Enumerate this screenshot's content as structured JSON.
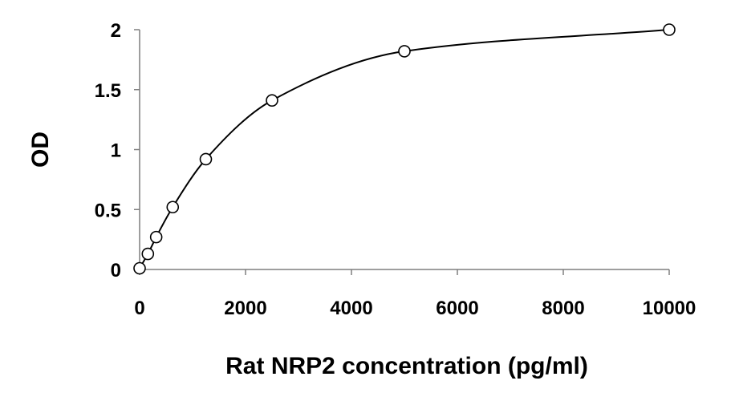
{
  "chart_data": {
    "type": "scatter",
    "title": "",
    "xlabel": "Rat NRP2 concentration (pg/ml)",
    "ylabel": "OD",
    "xlim": [
      0,
      10000
    ],
    "ylim": [
      0,
      2
    ],
    "x_ticks": [
      0,
      2000,
      4000,
      6000,
      8000,
      10000
    ],
    "x_tick_labels": [
      "0",
      "2000",
      "4000",
      "6000",
      "8000",
      "10000"
    ],
    "y_ticks": [
      0,
      0.5,
      1,
      1.5,
      2
    ],
    "y_tick_labels": [
      "0",
      "0.5",
      "1",
      "1.5",
      "2"
    ],
    "grid": false,
    "legend": "none",
    "series": [
      {
        "x": [
          0,
          156,
          313,
          625,
          1250,
          2500,
          5000,
          10000
        ],
        "y": [
          0.01,
          0.13,
          0.27,
          0.52,
          0.92,
          1.41,
          1.82,
          2.0
        ],
        "marker": "open-circle",
        "fit_line": "smooth",
        "color": "#000000"
      }
    ]
  }
}
